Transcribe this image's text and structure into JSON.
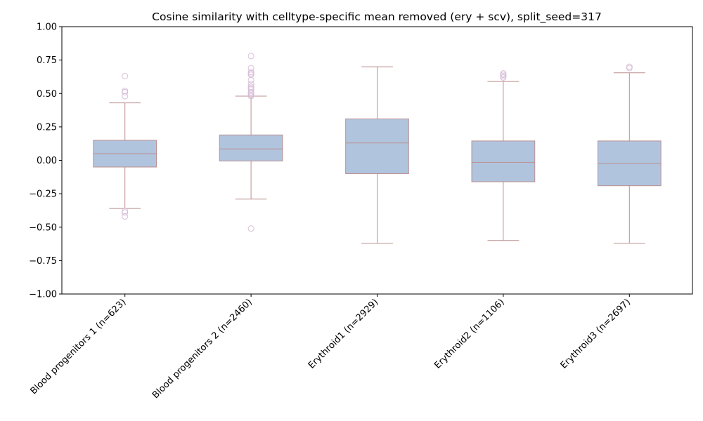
{
  "colors": {
    "box_fill": "#b0c4de",
    "box_edge": "#bc8f8f",
    "outlier_edge": "#d8bfd8",
    "axis": "#000000"
  },
  "chart_data": {
    "type": "box",
    "title": "Cosine similarity with celltype-specific mean removed (ery + scv), split_seed=317",
    "xlabel": "",
    "ylabel": "",
    "ylim": [
      -1.0,
      1.0
    ],
    "yticks": [
      -1.0,
      -0.75,
      -0.5,
      -0.25,
      0.0,
      0.25,
      0.5,
      0.75,
      1.0
    ],
    "ytick_labels": [
      "−1.00",
      "−0.75",
      "−0.50",
      "−0.25",
      "0.00",
      "0.25",
      "0.50",
      "0.75",
      "1.00"
    ],
    "grid": false,
    "legend": "none",
    "categories": [
      "Blood progenitors 1 (n=623)",
      "Blood progenitors 2 (n=2460)",
      "Erythroid1 (n=2929)",
      "Erythroid2 (n=1106)",
      "Erythroid3 (n=2697)"
    ],
    "boxes": [
      {
        "whisker_low": -0.36,
        "q1": -0.05,
        "median": 0.05,
        "q3": 0.15,
        "whisker_high": 0.43,
        "outliers": [
          0.63,
          0.52,
          0.51,
          0.48,
          -0.38,
          -0.39,
          -0.42
        ]
      },
      {
        "whisker_low": -0.29,
        "q1": -0.005,
        "median": 0.085,
        "q3": 0.19,
        "whisker_high": 0.48,
        "outliers": [
          0.78,
          0.69,
          0.66,
          0.65,
          0.64,
          0.6,
          0.57,
          0.55,
          0.54,
          0.53,
          0.51,
          0.5,
          0.49,
          0.48,
          -0.51
        ]
      },
      {
        "whisker_low": -0.62,
        "q1": -0.1,
        "median": 0.13,
        "q3": 0.31,
        "whisker_high": 0.7,
        "outliers": []
      },
      {
        "whisker_low": -0.6,
        "q1": -0.16,
        "median": -0.015,
        "q3": 0.145,
        "whisker_high": 0.59,
        "outliers": [
          0.65,
          0.64,
          0.63,
          0.62
        ]
      },
      {
        "whisker_low": -0.62,
        "q1": -0.19,
        "median": -0.025,
        "q3": 0.145,
        "whisker_high": 0.655,
        "outliers": [
          0.7,
          0.69
        ]
      }
    ]
  }
}
